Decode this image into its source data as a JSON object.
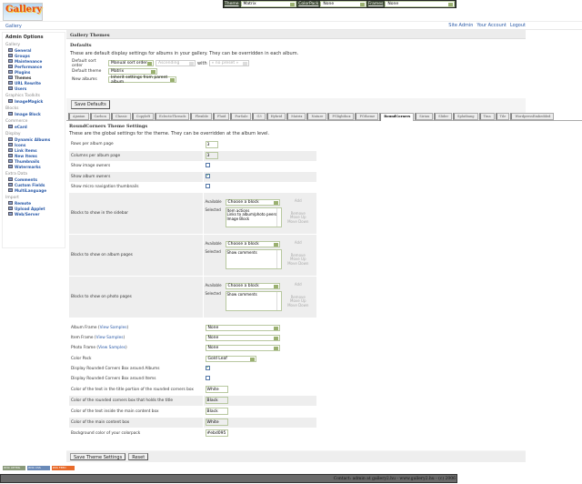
{
  "header": {
    "logo_text": "Gallery",
    "breadcrumb": "Gallery",
    "links": [
      "Site Admin",
      "Your Account",
      "Logout"
    ]
  },
  "topbar": {
    "theme_label": "Theme",
    "theme_value": "Matrix",
    "colorpack_label": "ColorPack",
    "colorpack_value": "None",
    "frames_label": "Frames",
    "frames_value": "None"
  },
  "sidebar": {
    "title": "Admin Options",
    "groups": [
      {
        "label": "Gallery",
        "items": [
          "General",
          "Groups",
          "Maintenance",
          "Performance",
          "Plugins",
          "Themes",
          "URL Rewrite",
          "Users"
        ]
      },
      {
        "label": "Graphics Toolkits",
        "items": [
          "ImageMagick"
        ]
      },
      {
        "label": "Blocks",
        "items": [
          "Image Block"
        ]
      },
      {
        "label": "Commerce",
        "items": [
          "eCard"
        ]
      },
      {
        "label": "Display",
        "items": [
          "Dynamic Albums",
          "Icons",
          "Link Items",
          "New Items",
          "Thumbnails",
          "Watermarks"
        ]
      },
      {
        "label": "Extra Data",
        "items": [
          "Comments",
          "Custom Fields",
          "MultiLanguage"
        ]
      },
      {
        "label": "Import",
        "items": [
          "Remote",
          "Upload Applet",
          "Web/Server"
        ]
      }
    ],
    "current": "Themes"
  },
  "page": {
    "title": "Gallery Themes",
    "defaults_title": "Defaults",
    "defaults_desc": "These are default display settings for albums in your gallery. They can be overridden in each album.",
    "sort_label": "Default sort order",
    "sort_value": "Manual sort order",
    "sort_dir": "Ascending",
    "with_label": "with",
    "with_value": "« no preset »",
    "theme_label": "Default theme",
    "theme_value": "Matrix",
    "new_label": "New albums",
    "new_value": "Inherit settings from parent album",
    "save_defaults": "Save Defaults"
  },
  "tabs": [
    "Ajaxian",
    "Carbon",
    "Classic",
    "Copyleft",
    "EclecticThreads",
    "Flexible",
    "Fluid",
    "PorSale",
    "G3",
    "Hybrid",
    "Matrix",
    "Nature",
    "PGlightbox",
    "PGtheme",
    "RoundCorners",
    "Siriux",
    "Slider",
    "Splatbang",
    "Tina",
    "Tile",
    "WordpressEmbedded"
  ],
  "active_tab": "RoundCorners",
  "theme": {
    "title": "RoundCorners Theme Settings",
    "desc": "These are the global settings for the theme. They can be overridden at the album level.",
    "rows_label": "Rows per album page",
    "rows": "3",
    "cols_label": "Columns per album page",
    "cols": "3",
    "image_owners": "Show image owners",
    "image_owners_on": false,
    "album_owners": "Show album owners",
    "album_owners_on": true,
    "micro_nav": "Show micro navigation thumbnails",
    "micro_nav_on": false,
    "available": "Available",
    "selected": "Selected",
    "choose": "Choose a block",
    "add": "Add",
    "remove": "Remove",
    "move_up": "Move Up",
    "move_down": "Move Down",
    "blocks": [
      {
        "label": "Blocks to show in the sidebar",
        "selected": [
          "Item actions",
          "Links to album/photo peers",
          "Image Block"
        ]
      },
      {
        "label": "Blocks to show on album pages",
        "selected": [
          "Show comments"
        ]
      },
      {
        "label": "Blocks to show on photo pages",
        "selected": [
          "Show comments"
        ]
      }
    ],
    "view_samples": "View Samples",
    "album_frame": "Album Frame",
    "album_frame_value": "None",
    "item_frame": "Item Frame",
    "item_frame_value": "None",
    "photo_frame": "Photo Frame",
    "photo_frame_value": "None",
    "color_pack": "Color Pack",
    "color_pack_value": "Gold Leaf",
    "rc_albums": "Display Rounded Corners Box around Albums",
    "rc_albums_on": true,
    "rc_items": "Display Rounded Corners Box around Items",
    "rc_items_on": false,
    "colors": [
      {
        "label": "Color of the text in the title portion of the rounded corners box",
        "value": "White"
      },
      {
        "label": "Color of the rounded corners box that holds the title",
        "value": "Black"
      },
      {
        "label": "Color of the text inside the main content box",
        "value": "Black"
      },
      {
        "label": "Color of the main content box",
        "value": "White"
      },
      {
        "label": "Background color of your colorpack",
        "value": "#ebd095"
      }
    ],
    "save": "Save Theme Settings",
    "reset": "Reset"
  },
  "badges": [
    "W3C XHTML 1.0",
    "W3C CSS",
    "RSS FEED"
  ],
  "footer": "Contact: admin at gallery2.hu - www.gallery2.hu - (c) 2006"
}
